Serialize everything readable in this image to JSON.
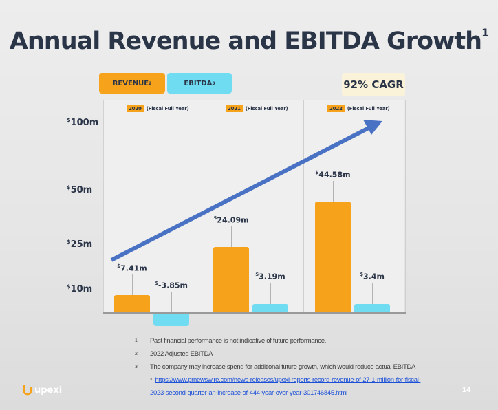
{
  "slide": {
    "title": "Annual Revenue and EBITDA Growth",
    "title_footnote": "1",
    "page_number": "14",
    "logo_text": "upexi"
  },
  "legend": {
    "revenue_label": "REVENUE",
    "revenue_footnote": "2",
    "ebitda_label": "EBITDA",
    "ebitda_footnote": "3",
    "cagr_label": "92% CAGR"
  },
  "colors": {
    "revenue": "#f7a21b",
    "ebitda": "#6fdcf2",
    "trend": "#4a72c4",
    "title": "#2b3548"
  },
  "chart_data": {
    "type": "bar",
    "title": "Annual Revenue and EBITDA Growth",
    "xlabel": "",
    "ylabel": "",
    "y_tick_labels": [
      {
        "value": 100,
        "prefix": "$",
        "text": "100m"
      },
      {
        "value": 50,
        "prefix": "$",
        "text": "50m"
      },
      {
        "value": 25,
        "prefix": "$",
        "text": "25m"
      },
      {
        "value": 10,
        "prefix": "$",
        "text": "10m"
      }
    ],
    "categories": [
      {
        "year": "2020",
        "desc": "(Fiscal Full Year)"
      },
      {
        "year": "2021",
        "desc": "(Fiscal Full Year)"
      },
      {
        "year": "2022",
        "desc": "(Fiscal Full Year)"
      }
    ],
    "series": [
      {
        "name": "Revenue",
        "values": [
          7.41,
          24.09,
          44.58
        ],
        "labels": [
          "7.41m",
          "24.09m",
          "44.58m"
        ]
      },
      {
        "name": "EBITDA",
        "values": [
          -3.85,
          3.19,
          3.4
        ],
        "labels": [
          "-3.85m",
          "3.19m",
          "3.4m"
        ]
      }
    ],
    "annotation": "92% CAGR",
    "trend_arrow": true
  },
  "footnotes": [
    {
      "num": "1.",
      "text": "Past financial performance is not indicative of future performance."
    },
    {
      "num": "2.",
      "text": "2022 Adjusted EBITDA"
    },
    {
      "num": "3.",
      "text": "The company may increase spend for additional future growth, which would reduce actual EBITDA"
    }
  ],
  "source": {
    "marker": "*",
    "url_line1": "https://www.prnewswire.com/news-releases/upexi-reports-record-revenue-of-27-1-million-for-fiscal-",
    "url_line2": "2023-second-quarter-an-increase-of-444-year-over-year-301746845.html"
  }
}
